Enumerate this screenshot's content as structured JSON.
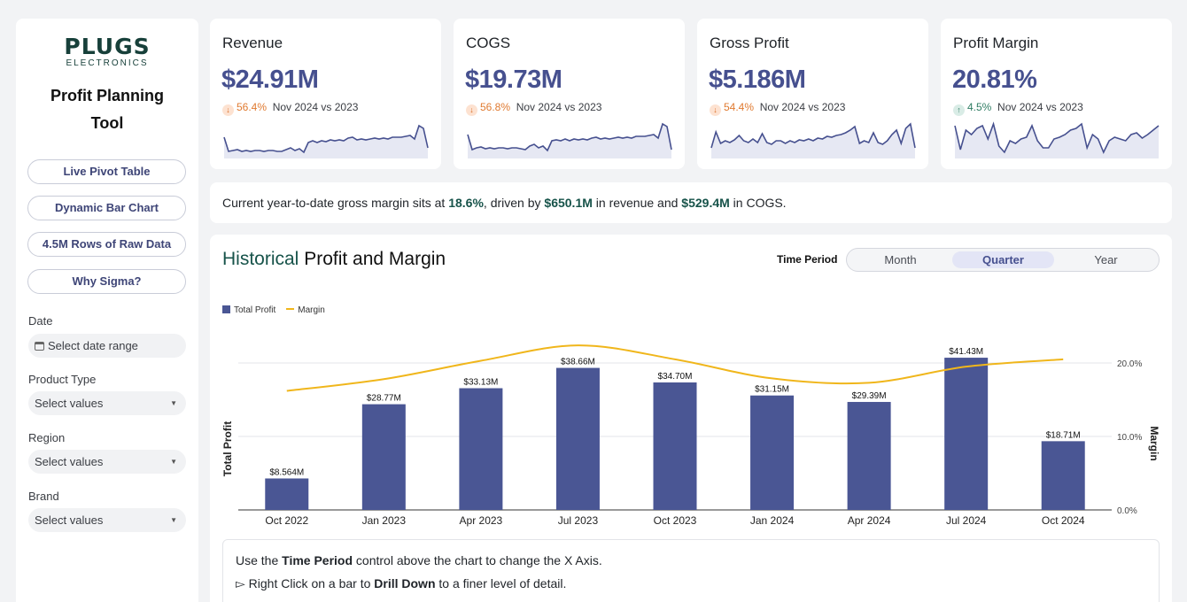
{
  "sidebar": {
    "logo_main": "PLUGS",
    "logo_sub": "ELECTRONICS",
    "title_line1": "Profit Planning",
    "title_line2": "Tool",
    "buttons": [
      {
        "label": "Live Pivot Table"
      },
      {
        "label": "Dynamic Bar Chart"
      },
      {
        "label": "4.5M Rows of Raw Data"
      },
      {
        "label": "Why Sigma?"
      }
    ],
    "filters": [
      {
        "label": "Date",
        "placeholder": "Select date range"
      },
      {
        "label": "Product Type",
        "placeholder": "Select values"
      },
      {
        "label": "Region",
        "placeholder": "Select values"
      },
      {
        "label": "Brand",
        "placeholder": "Select values"
      }
    ]
  },
  "kpis": [
    {
      "title": "Revenue",
      "value": "$24.91M",
      "delta_pct": "56.4%",
      "direction": "down",
      "period": "Nov 2024 vs 2023",
      "spark": [
        18,
        34,
        33,
        32,
        34,
        33,
        34,
        33,
        33,
        34,
        33,
        33,
        34,
        34,
        32,
        30,
        33,
        31,
        35,
        24,
        22,
        24,
        22,
        23,
        21,
        22,
        21,
        22,
        19,
        18,
        21,
        20,
        21,
        20,
        19,
        20,
        19,
        20,
        18,
        18,
        18,
        17,
        16,
        20,
        5,
        8,
        30
      ]
    },
    {
      "title": "COGS",
      "value": "$19.73M",
      "delta_pct": "56.8%",
      "direction": "down",
      "period": "Nov 2024 vs 2023",
      "spark": [
        15,
        32,
        30,
        29,
        31,
        30,
        31,
        30,
        30,
        31,
        30,
        30,
        31,
        32,
        28,
        26,
        30,
        28,
        33,
        22,
        21,
        22,
        20,
        22,
        20,
        21,
        20,
        21,
        19,
        18,
        20,
        19,
        20,
        19,
        18,
        19,
        18,
        19,
        17,
        17,
        17,
        16,
        15,
        19,
        3,
        6,
        32
      ]
    },
    {
      "title": "Gross Profit",
      "value": "$5.186M",
      "delta_pct": "54.4%",
      "direction": "down",
      "period": "Nov 2024 vs 2023",
      "spark": [
        30,
        12,
        25,
        22,
        24,
        21,
        16,
        22,
        24,
        20,
        24,
        14,
        24,
        26,
        22,
        22,
        25,
        22,
        24,
        21,
        22,
        20,
        22,
        19,
        20,
        17,
        18,
        16,
        15,
        13,
        10,
        6,
        25,
        22,
        24,
        13,
        24,
        26,
        22,
        15,
        10,
        25,
        8,
        3,
        30
      ]
    },
    {
      "title": "Profit Margin",
      "value": "20.81%",
      "delta_pct": "4.5%",
      "direction": "up",
      "period": "Nov 2024 vs 2023",
      "spark": [
        5,
        32,
        10,
        15,
        8,
        5,
        20,
        3,
        28,
        35,
        22,
        25,
        20,
        18,
        5,
        22,
        30,
        30,
        20,
        18,
        15,
        10,
        8,
        3,
        30,
        15,
        20,
        35,
        22,
        18,
        20,
        22,
        15,
        13,
        19,
        15,
        10,
        5
      ]
    }
  ],
  "summary": {
    "prefix": "Current year-to-date gross margin sits at ",
    "margin": "18.6%",
    "mid1": ", driven by ",
    "revenue": "$650.1M",
    "mid2": " in revenue and ",
    "cogs": "$529.4M",
    "suffix": " in COGS."
  },
  "chart_card": {
    "title_accent": "Historical",
    "title_rest": " Profit and Margin",
    "time_period_label": "Time Period",
    "time_options": [
      "Month",
      "Quarter",
      "Year"
    ],
    "time_selected": "Quarter",
    "legend_bar": "Total Profit",
    "legend_line": "Margin",
    "note_l1_a": "Use the ",
    "note_l1_b": "Time Period",
    "note_l1_c": " control above the chart to change the X Axis.",
    "note_l2_a": "▻ Right Click on a bar to ",
    "note_l2_b": "Drill Down",
    "note_l2_c": " to a finer level of detail."
  },
  "chart_data": {
    "type": "bar",
    "categories": [
      "Oct 2022",
      "Jan 2023",
      "Apr 2023",
      "Jul 2023",
      "Oct 2023",
      "Jan 2024",
      "Apr 2024",
      "Jul 2024",
      "Oct 2024"
    ],
    "series": [
      {
        "name": "Total Profit",
        "type": "bar",
        "axis": "left",
        "color": "#4a5694",
        "values": [
          8.564,
          28.77,
          33.13,
          38.66,
          34.7,
          31.15,
          29.39,
          41.43,
          18.71
        ],
        "labels": [
          "$8.564M",
          "$28.77M",
          "$33.13M",
          "$38.66M",
          "$34.70M",
          "$31.15M",
          "$29.39M",
          "$41.43M",
          "$18.71M"
        ]
      },
      {
        "name": "Margin",
        "type": "line",
        "axis": "right",
        "color": "#f0b61b",
        "values": [
          16.2,
          17.8,
          20.3,
          22.4,
          20.5,
          17.9,
          17.3,
          19.5,
          20.5
        ]
      }
    ],
    "ylabel": "Total Profit",
    "y2label": "Margin",
    "ylim": [
      0,
      40
    ],
    "y2lim": [
      0,
      20
    ],
    "y2ticks": [
      "0.0%",
      "10.0%",
      "20.0%"
    ],
    "grid": true,
    "legend_position": "top-left"
  }
}
